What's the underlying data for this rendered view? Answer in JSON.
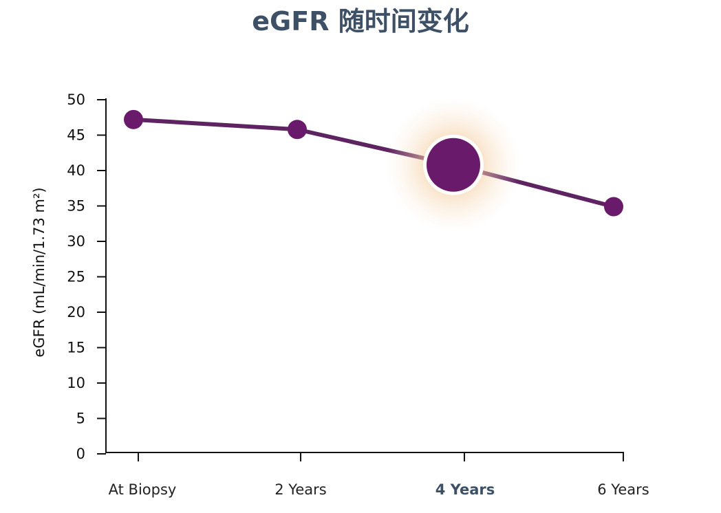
{
  "chart_data": {
    "type": "line",
    "title": "eGFR 随时间变化",
    "xlabel": "",
    "ylabel": "eGFR (mL/min/1.73 m²)",
    "categories": [
      "At Biopsy",
      "2 Years",
      "4 Years",
      "6 Years"
    ],
    "values": [
      47.2,
      45.8,
      40.8,
      34.9
    ],
    "yticks": [
      "0",
      "5",
      "10",
      "15",
      "20",
      "25",
      "30",
      "35",
      "40",
      "45",
      "50"
    ],
    "ylim": [
      0,
      50
    ],
    "grid": false,
    "highlighted_category": "4 Years",
    "colors": {
      "line": "#5e2462",
      "marker": "#6a1a6b",
      "highlight_glow": "#f3c28e",
      "title": "#3d5066",
      "highlight_label": "#3d5066"
    }
  }
}
